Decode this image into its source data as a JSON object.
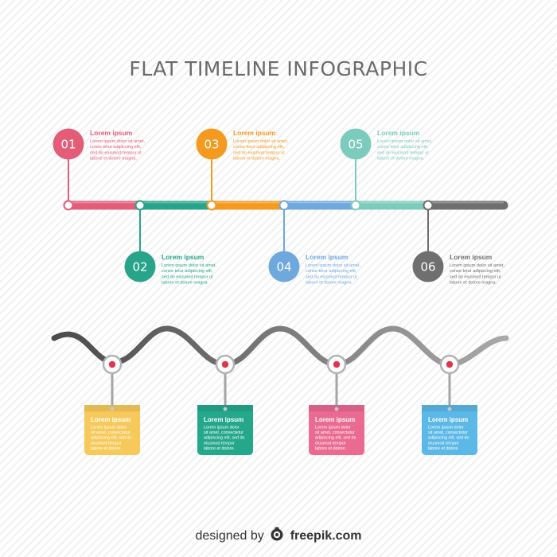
{
  "title": "FLAT TIMELINE INFOGRAPHIC",
  "milestones": [
    {
      "number": "01",
      "title": "Lorem ipsum",
      "body": [
        "Lorem ipsum dolor sit amet,",
        "conse tetur adipiscing elit,",
        "sed do eiusmod tempor ut",
        "labore et dolore magna."
      ],
      "color": "#e35d78"
    },
    {
      "number": "02",
      "title": "Lorem ipsum",
      "body": [
        "Lorem ipsum dolor sit amet,",
        "conse tetur adipiscing elit,",
        "sed do eiusmod tempor ut",
        "labore et dolore magna."
      ],
      "color": "#27a489"
    },
    {
      "number": "03",
      "title": "Lorem ipsum",
      "body": [
        "Lorem ipsum dolor sit amet,",
        "conse tetur adipiscing elit,",
        "sed do eiusmod tempor ut",
        "labore et dolore magna."
      ],
      "color": "#f49a1e"
    },
    {
      "number": "04",
      "title": "Lorem ipsum",
      "body": [
        "Lorem ipsum dolor sit amet,",
        "conse tetur adipiscing elit,",
        "sed do eiusmod tempor ut",
        "labore et dolore magna."
      ],
      "color": "#6fa8dc"
    },
    {
      "number": "05",
      "title": "Lorem ipsum",
      "body": [
        "Lorem ipsum dolor sit amet,",
        "conse tetur adipiscing elit,",
        "sed do eiusmod tempor ut",
        "labore et dolore magna."
      ],
      "color": "#7ccbbc"
    },
    {
      "number": "06",
      "title": "Lorem ipsum",
      "body": [
        "Lorem ipsum dolor sit amet,",
        "conse tetur adipiscing elit,",
        "sed do eiusmod tempor ut",
        "labore et dolore magna."
      ],
      "color": "#6f6f6f"
    }
  ],
  "timeline_segments": [
    "#e35d78",
    "#27a489",
    "#f49a1e",
    "#6fa8dc",
    "#7ccbbc",
    "#6f6f6f"
  ],
  "cards": [
    {
      "title": "Lorem ipsum",
      "body": [
        "Lorem ipsum dolor",
        "sit amet, consectetur",
        "adipiscing elit, sed do",
        "eiusmod tempor",
        "labore et dolore."
      ],
      "color": "#f6c95a"
    },
    {
      "title": "Lorem ipsum",
      "body": [
        "Lorem ipsum dolor",
        "sit amet, consectetur",
        "adipiscing elit, sed do",
        "eiusmod tempor",
        "labore et dolore."
      ],
      "color": "#25a78c"
    },
    {
      "title": "Lorem ipsum",
      "body": [
        "Lorem ipsum dolor",
        "sit amet, consectetur",
        "adipiscing elit, sed do",
        "eiusmod tempor",
        "labore et dolore."
      ],
      "color": "#ea6a91"
    },
    {
      "title": "Lorem ipsum",
      "body": [
        "Lorem ipsum dolor",
        "sit amet, consectetur",
        "adipiscing elit, sed do",
        "eiusmod tempor",
        "labore et dolore."
      ],
      "color": "#5cb8e6"
    }
  ],
  "footer": {
    "prefix": "designed by",
    "brand": "freepik.com",
    "icon": "freepik-logo-icon"
  }
}
